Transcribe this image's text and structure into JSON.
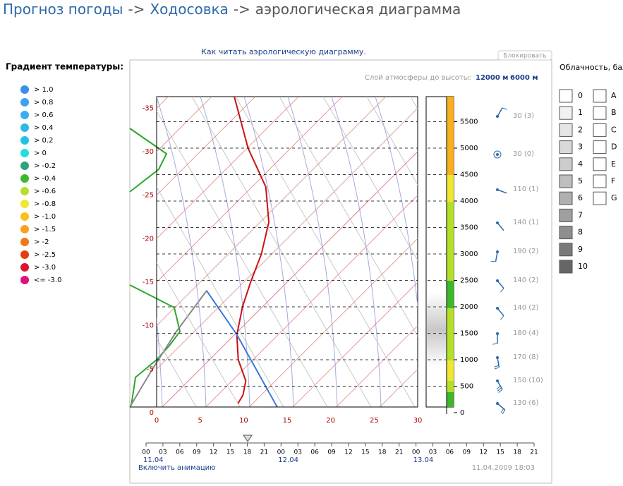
{
  "header": {
    "crumbs": [
      "Прогноз погоды",
      "Ходосовка"
    ],
    "separator": "->",
    "page": "аэрологическая диаграмма"
  },
  "link": "Как читать аэрологическую диаграмму.",
  "lock_button": "Блокировать",
  "layer": {
    "label": "Слой атмосферы до высоты:",
    "options": [
      "12000 м",
      "6000 м"
    ]
  },
  "gradient_legend": {
    "title": "Градиент температуры:",
    "items": [
      {
        "label": "> 1.0",
        "color": "#3b8fe8"
      },
      {
        "label": "> 0.8",
        "color": "#3fa0ef"
      },
      {
        "label": "> 0.6",
        "color": "#3aaef0"
      },
      {
        "label": "> 0.4",
        "color": "#2fb8e6"
      },
      {
        "label": "> 0.2",
        "color": "#20c3e0"
      },
      {
        "label": "> 0",
        "color": "#22dede"
      },
      {
        "label": "> -0.2",
        "color": "#2ea37a"
      },
      {
        "label": "> -0.4",
        "color": "#3db82a"
      },
      {
        "label": "> -0.6",
        "color": "#b5e02a"
      },
      {
        "label": "> -0.8",
        "color": "#f0e830"
      },
      {
        "label": "> -1.0",
        "color": "#f8c020"
      },
      {
        "label": "> -1.5",
        "color": "#f8a020"
      },
      {
        "label": "> -2",
        "color": "#f07818"
      },
      {
        "label": "> -2.5",
        "color": "#e04010"
      },
      {
        "label": "> -3.0",
        "color": "#e01030"
      },
      {
        "label": "<= -3.0",
        "color": "#e0107a"
      }
    ]
  },
  "cloud_legend": {
    "title": "Облачность, баллы",
    "levels": [
      {
        "label": "0",
        "color": "#ffffff"
      },
      {
        "label": "1",
        "color": "#f2f2f2"
      },
      {
        "label": "2",
        "color": "#e6e6e6"
      },
      {
        "label": "3",
        "color": "#d9d9d9"
      },
      {
        "label": "4",
        "color": "#cccccc"
      },
      {
        "label": "5",
        "color": "#bfbfbf"
      },
      {
        "label": "6",
        "color": "#b0b0b0"
      },
      {
        "label": "7",
        "color": "#a0a0a0"
      },
      {
        "label": "8",
        "color": "#8f8f8f"
      },
      {
        "label": "9",
        "color": "#7a7a7a"
      },
      {
        "label": "10",
        "color": "#666666"
      }
    ],
    "types": [
      "A",
      "B",
      "C",
      "D",
      "E",
      "F",
      "G"
    ]
  },
  "diagram": {
    "temp_lim": [
      0,
      30
    ],
    "temp_ticks": [
      0,
      5,
      10,
      15,
      20,
      25,
      30
    ],
    "skew_ticks": [
      -35,
      -30,
      -25,
      -20,
      -15,
      -10,
      -5,
      0
    ],
    "height_lim": [
      0,
      6000
    ],
    "height_ticks": [
      0,
      500,
      1000,
      1500,
      2000,
      2500,
      3000,
      3500,
      4000,
      4500,
      5000,
      5500
    ],
    "temperature": {
      "color": "#cc1111",
      "heights": [
        5973,
        5000,
        4267,
        3600,
        3000,
        2467,
        2000,
        1467,
        1000,
        600,
        333,
        173
      ],
      "values": [
        -27.4,
        -19.9,
        -13.4,
        -9.0,
        -6.2,
        -4.2,
        -2.3,
        0.3,
        3.3,
        6.6,
        7.9,
        8.3
      ]
    },
    "parcel": {
      "color": "#3a7ad8",
      "heights": [
        2307,
        1480,
        107
      ],
      "values": [
        -8.3,
        0.2,
        13.2
      ]
    },
    "winds": [
      {
        "dir": 30,
        "speed": 3,
        "label": "30 (3)"
      },
      {
        "dir": 30,
        "speed": 0,
        "label": "30 (0)"
      },
      {
        "dir": 110,
        "speed": 1,
        "label": "110 (1)"
      },
      {
        "dir": 140,
        "speed": 1,
        "label": "140 (1)"
      },
      {
        "dir": 190,
        "speed": 2,
        "label": "190 (2)"
      },
      {
        "dir": 140,
        "speed": 2,
        "label": "140 (2)"
      },
      {
        "dir": 140,
        "speed": 2,
        "label": "140 (2)"
      },
      {
        "dir": 180,
        "speed": 4,
        "label": "180 (4)"
      },
      {
        "dir": 170,
        "speed": 8,
        "label": "170 (8)"
      },
      {
        "dir": 150,
        "speed": 10,
        "label": "150 (10)"
      },
      {
        "dir": 130,
        "speed": 6,
        "label": "130 (6)"
      }
    ]
  },
  "timeline": {
    "hours": [
      "00",
      "03",
      "06",
      "09",
      "12",
      "15",
      "18",
      "21",
      "00",
      "03",
      "06",
      "09",
      "12",
      "15",
      "18",
      "21",
      "00",
      "03",
      "06",
      "09",
      "12",
      "15",
      "18",
      "21"
    ],
    "dates": [
      "11.04",
      "12.04",
      "13.04"
    ]
  },
  "animation_link": "Включить анимацию",
  "timestamp": "11.04.2009 18:03"
}
